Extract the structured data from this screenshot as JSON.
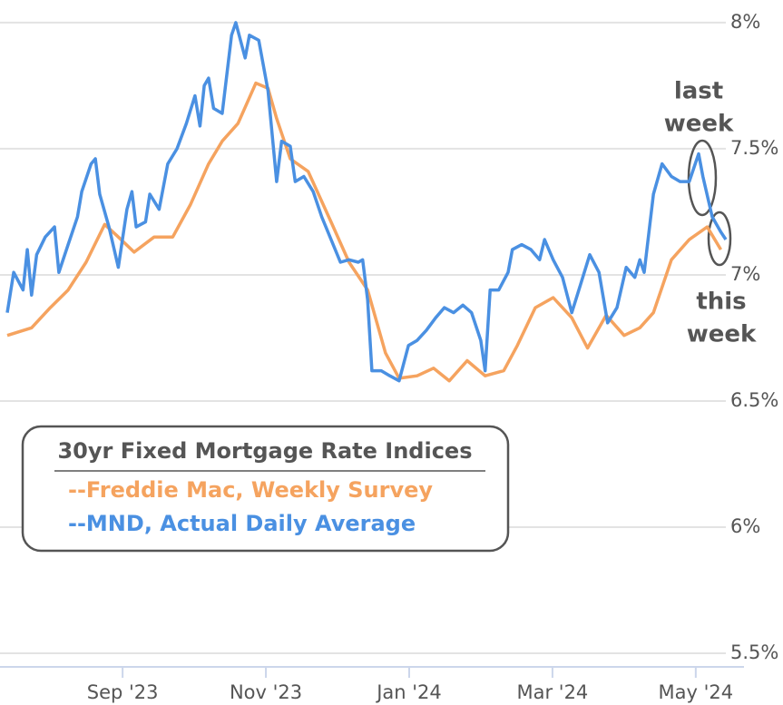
{
  "chart_data": {
    "type": "line",
    "xlim": [
      7.39,
      17.42
    ],
    "ylim": [
      5.5,
      8.05
    ],
    "xticks": [
      {
        "value": 9,
        "label": "Sep '23"
      },
      {
        "value": 11,
        "label": "Nov '23"
      },
      {
        "value": 13,
        "label": "Jan '24"
      },
      {
        "value": 15,
        "label": "Mar '24"
      },
      {
        "value": 17,
        "label": "May '24"
      }
    ],
    "yticks": [
      {
        "value": 5.5,
        "label": "5.5%"
      },
      {
        "value": 6,
        "label": "6%"
      },
      {
        "value": 6.5,
        "label": "6.5%"
      },
      {
        "value": 7,
        "label": "7%"
      },
      {
        "value": 7.5,
        "label": "7.5%"
      },
      {
        "value": 8,
        "label": "8%"
      }
    ],
    "grid": true,
    "legend": {
      "title": "30yr Fixed Mortgage Rate Indices",
      "position": "lower left"
    },
    "annotations": [
      {
        "lines": [
          "last",
          "week"
        ]
      },
      {
        "lines": [
          "this",
          "week"
        ]
      }
    ],
    "series": [
      {
        "name": "--Freddie Mac, Weekly Survey",
        "color": "#f5a35f",
        "x": [
          7.39,
          7.73,
          7.99,
          8.24,
          8.49,
          8.75,
          8.94,
          9.16,
          9.44,
          9.7,
          9.95,
          10.2,
          10.39,
          10.61,
          10.86,
          11.03,
          11.15,
          11.34,
          11.59,
          11.91,
          12.16,
          12.42,
          12.67,
          12.86,
          13.11,
          13.34,
          13.56,
          13.81,
          14.06,
          14.32,
          14.51,
          14.76,
          15.01,
          15.27,
          15.49,
          15.75,
          16.0,
          16.22,
          16.41,
          16.66,
          16.91,
          17.16,
          17.35
        ],
        "values": [
          6.76,
          6.79,
          6.87,
          6.94,
          7.05,
          7.2,
          7.15,
          7.09,
          7.15,
          7.15,
          7.28,
          7.44,
          7.53,
          7.6,
          7.76,
          7.74,
          7.62,
          7.46,
          7.41,
          7.21,
          7.05,
          6.94,
          6.69,
          6.59,
          6.6,
          6.63,
          6.58,
          6.66,
          6.6,
          6.62,
          6.72,
          6.87,
          6.91,
          6.83,
          6.71,
          6.84,
          6.76,
          6.79,
          6.85,
          7.06,
          7.14,
          7.19,
          7.1
        ]
      },
      {
        "name": "--MND, Actual Daily Average",
        "color": "#4a90e2",
        "x": [
          7.39,
          7.48,
          7.61,
          7.67,
          7.73,
          7.8,
          7.92,
          8.05,
          8.11,
          8.24,
          8.37,
          8.43,
          8.56,
          8.62,
          8.68,
          8.81,
          8.94,
          9.06,
          9.13,
          9.19,
          9.32,
          9.38,
          9.51,
          9.63,
          9.76,
          9.89,
          10.01,
          10.08,
          10.14,
          10.2,
          10.27,
          10.39,
          10.52,
          10.58,
          10.71,
          10.77,
          10.9,
          11.03,
          11.15,
          11.22,
          11.34,
          11.41,
          11.53,
          11.66,
          11.78,
          11.91,
          12.04,
          12.16,
          12.29,
          12.35,
          12.42,
          12.48,
          12.61,
          12.73,
          12.86,
          12.99,
          13.11,
          13.24,
          13.37,
          13.49,
          13.62,
          13.75,
          13.87,
          14.0,
          14.06,
          14.13,
          14.25,
          14.38,
          14.44,
          14.57,
          14.7,
          14.82,
          14.89,
          15.01,
          15.14,
          15.27,
          15.39,
          15.52,
          15.65,
          15.77,
          15.9,
          16.03,
          16.15,
          16.22,
          16.28,
          16.41,
          16.53,
          16.66,
          16.78,
          16.91,
          17.04,
          17.1,
          17.23,
          17.35,
          17.42
        ],
        "values": [
          6.85,
          7.01,
          6.94,
          7.1,
          6.92,
          7.08,
          7.15,
          7.19,
          7.01,
          7.12,
          7.23,
          7.33,
          7.44,
          7.46,
          7.32,
          7.19,
          7.03,
          7.26,
          7.33,
          7.19,
          7.21,
          7.32,
          7.26,
          7.44,
          7.5,
          7.6,
          7.71,
          7.59,
          7.75,
          7.78,
          7.66,
          7.64,
          7.95,
          8.0,
          7.86,
          7.95,
          7.93,
          7.73,
          7.37,
          7.53,
          7.51,
          7.37,
          7.39,
          7.33,
          7.23,
          7.14,
          7.05,
          7.06,
          7.05,
          7.06,
          6.9,
          6.62,
          6.62,
          6.6,
          6.58,
          6.72,
          6.74,
          6.78,
          6.83,
          6.87,
          6.85,
          6.88,
          6.85,
          6.74,
          6.62,
          6.94,
          6.94,
          7.01,
          7.1,
          7.12,
          7.1,
          7.06,
          7.14,
          7.06,
          6.99,
          6.85,
          6.96,
          7.08,
          7.01,
          6.81,
          6.87,
          7.03,
          6.99,
          7.06,
          7.01,
          7.32,
          7.44,
          7.39,
          7.37,
          7.37,
          7.48,
          7.39,
          7.23,
          7.17,
          7.14
        ]
      }
    ]
  }
}
